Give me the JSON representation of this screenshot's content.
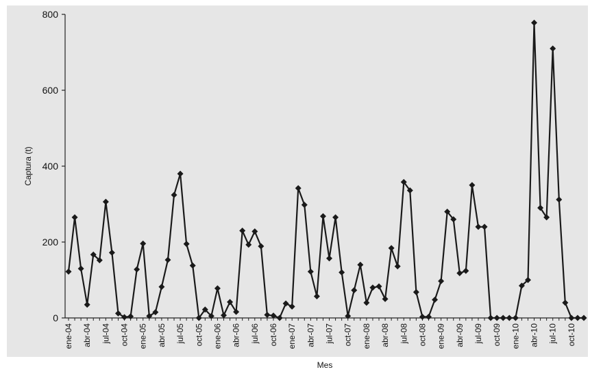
{
  "colors": {
    "plot_background": "#e6e6e6",
    "line": "#1a1a1a",
    "marker": "#1a1a1a",
    "axis": "#222222"
  },
  "chart_data": {
    "type": "line",
    "title": "",
    "xlabel": "Mes",
    "ylabel": "Captura (t)",
    "ylim": [
      0,
      800
    ],
    "yticks": [
      0,
      200,
      400,
      600,
      800
    ],
    "grid": false,
    "legend": "none",
    "marker": "diamond",
    "x_tick_labels": [
      "ene-04",
      "abr-04",
      "jul-04",
      "oct-04",
      "ene-05",
      "abr-05",
      "jul-05",
      "oct-05",
      "ene-06",
      "abr-06",
      "jul-06",
      "oct-06",
      "ene-07",
      "abr-07",
      "jul-07",
      "oct-07",
      "ene-08",
      "abr-08",
      "jul-08",
      "oct-08",
      "ene-09",
      "abr-09",
      "jul-09",
      "oct-09",
      "ene-10",
      "abr-10",
      "jul-10",
      "oct-10"
    ],
    "series": [
      {
        "values": [
          122,
          265,
          130,
          35,
          167,
          152,
          306,
          172,
          12,
          2,
          4,
          128,
          196,
          5,
          15,
          82,
          153,
          324,
          380,
          195,
          138,
          0,
          22,
          5,
          78,
          7,
          42,
          16,
          230,
          193,
          228,
          189,
          8,
          6,
          0,
          38,
          30,
          342,
          298,
          122,
          57,
          268,
          157,
          265,
          120,
          5,
          73,
          140,
          40,
          80,
          83,
          50,
          184,
          136,
          358,
          336,
          68,
          3,
          3,
          48,
          97,
          280,
          260,
          118,
          124,
          350,
          240,
          240,
          0,
          0,
          0,
          0,
          0,
          85,
          100,
          778,
          290,
          265,
          710,
          312,
          40,
          0,
          0,
          0
        ]
      }
    ]
  }
}
